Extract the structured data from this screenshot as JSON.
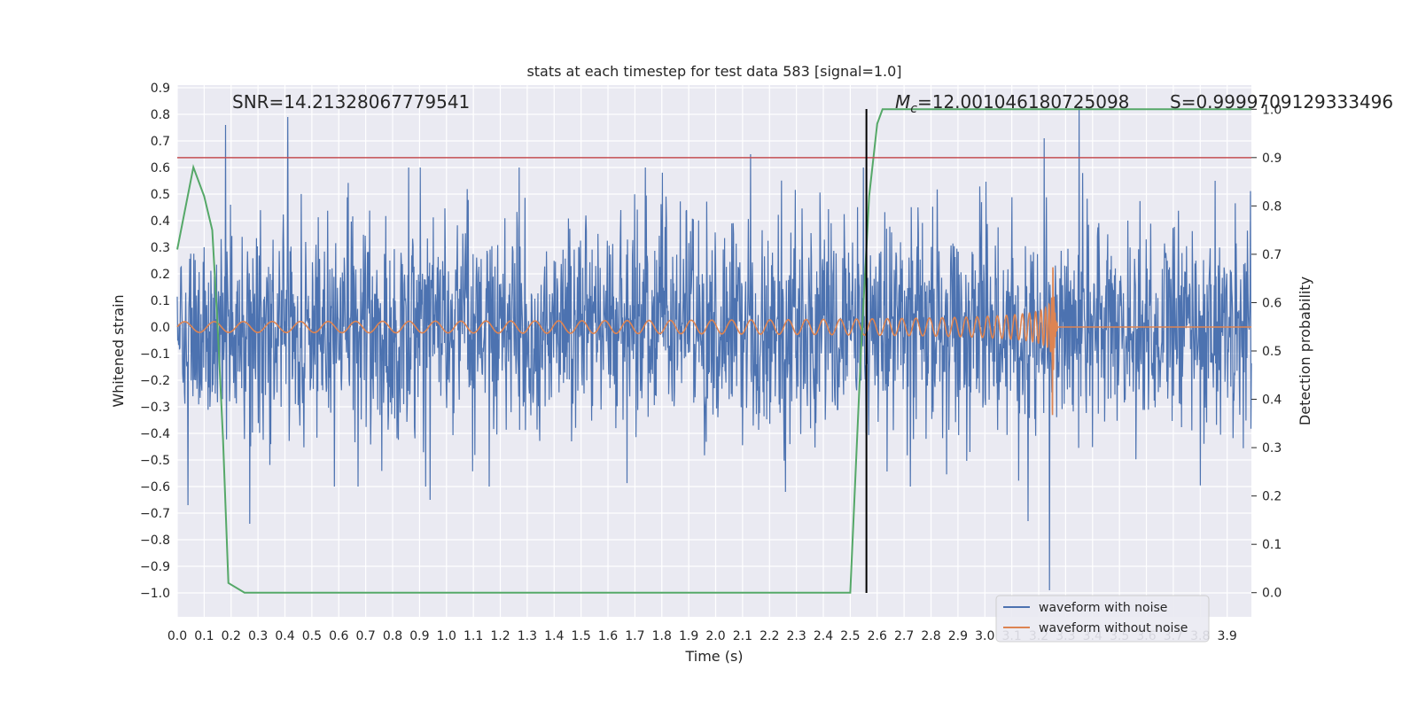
{
  "chart_data": {
    "type": "line",
    "title": "stats at each timestep for test data 583 [signal=1.0]",
    "xlabel": "Time (s)",
    "ylabel": "Whitened strain",
    "y2label": "Detection probability",
    "xlim": [
      0.0,
      3.99
    ],
    "ylim": [
      -1.09,
      0.91
    ],
    "y2lim": [
      -0.05,
      1.05
    ],
    "x_ticks": [
      0.0,
      0.1,
      0.2,
      0.3,
      0.4,
      0.5,
      0.6,
      0.7,
      0.8,
      0.9,
      1.0,
      1.1,
      1.2,
      1.3,
      1.4,
      1.5,
      1.6,
      1.7,
      1.8,
      1.9,
      2.0,
      2.1,
      2.2,
      2.3,
      2.4,
      2.5,
      2.6,
      2.7,
      2.8,
      2.9,
      3.0,
      3.1,
      3.2,
      3.3,
      3.4,
      3.5,
      3.6,
      3.7,
      3.8,
      3.9
    ],
    "x_tick_labels": [
      "0.0",
      "0.1",
      "0.2",
      "0.3",
      "0.4",
      "0.5",
      "0.6",
      "0.7",
      "0.8",
      "0.9",
      "1.0",
      "1.1",
      "1.2",
      "1.3",
      "1.4",
      "1.5",
      "1.6",
      "1.7",
      "1.8",
      "1.9",
      "2.0",
      "2.1",
      "2.2",
      "2.3",
      "2.4",
      "2.5",
      "2.6",
      "2.7",
      "2.8",
      "2.9",
      "3.0",
      "3.1",
      "3.2",
      "3.3",
      "3.4",
      "3.5",
      "3.6",
      "3.7",
      "3.8",
      "3.9"
    ],
    "y_ticks": [
      0.9,
      0.8,
      0.7,
      0.6,
      0.5,
      0.4,
      0.3,
      0.2,
      0.1,
      0.0,
      -0.1,
      -0.2,
      -0.3,
      -0.4,
      -0.5,
      -0.6,
      -0.7,
      -0.8,
      -0.9,
      -1.0
    ],
    "y_tick_labels": [
      "0.9",
      "0.8",
      "0.7",
      "0.6",
      "0.5",
      "0.4",
      "0.3",
      "0.2",
      "0.1",
      "0.0",
      "−0.1",
      "−0.2",
      "−0.3",
      "−0.4",
      "−0.5",
      "−0.6",
      "−0.7",
      "−0.8",
      "−0.9",
      "−1.0"
    ],
    "y2_ticks": [
      1.0,
      0.9,
      0.8,
      0.7,
      0.6,
      0.5,
      0.4,
      0.3,
      0.2,
      0.1,
      0.0
    ],
    "y2_tick_labels": [
      "1.0",
      "0.9",
      "0.8",
      "0.7",
      "0.6",
      "0.5",
      "0.4",
      "0.3",
      "0.2",
      "0.1",
      "0.0"
    ],
    "grid": true,
    "legend_position": "bottom-right",
    "series": [
      {
        "name": "waveform with noise",
        "color": "#4c72b0",
        "kind": "noise",
        "amplitude_range": [
          -0.6,
          0.6
        ],
        "peaks": [
          {
            "x": 0.18,
            "y": 0.76
          },
          {
            "x": 0.41,
            "y": 0.79
          },
          {
            "x": 2.13,
            "y": 0.65
          },
          {
            "x": 3.22,
            "y": 0.71
          },
          {
            "x": 3.35,
            "y": 0.83
          },
          {
            "x": 0.04,
            "y": -0.67
          },
          {
            "x": 0.27,
            "y": -0.74
          },
          {
            "x": 0.94,
            "y": -0.65
          },
          {
            "x": 2.26,
            "y": -0.62
          },
          {
            "x": 3.24,
            "y": -0.99
          },
          {
            "x": 3.16,
            "y": -0.73
          }
        ]
      },
      {
        "name": "waveform without noise",
        "color": "#dd8452",
        "kind": "chirp",
        "start_amplitude": 0.02,
        "peak_amplitude": 0.45,
        "merger_time": 3.25,
        "ringdown_end": 3.27
      },
      {
        "name": "",
        "color": "#55a868",
        "axis": "y2",
        "x": [
          0.0,
          0.06,
          0.1,
          0.13,
          0.15,
          0.17,
          0.19,
          0.25,
          2.5,
          2.54,
          2.57,
          2.6,
          2.62,
          3.99
        ],
        "y": [
          0.71,
          0.88,
          0.82,
          0.75,
          0.55,
          0.32,
          0.02,
          0.0,
          0.0,
          0.5,
          0.82,
          0.97,
          1.0,
          1.0
        ]
      }
    ],
    "threshold_line": {
      "y2": 0.9,
      "color": "#c44e52"
    },
    "vertical_line": {
      "x": 2.56,
      "y_top": 0.82,
      "y_bottom": -1.0,
      "color": "#000000"
    },
    "annotations": {
      "snr": "SNR=14.21328067779541",
      "mc_symbol": "M",
      "mc_subscript": "c",
      "mc_value": "=12.001046180725098",
      "s": "S=0.9999709129333496"
    },
    "colors": {
      "plot_bg": "#eaeaf2",
      "grid": "#ffffff"
    }
  }
}
